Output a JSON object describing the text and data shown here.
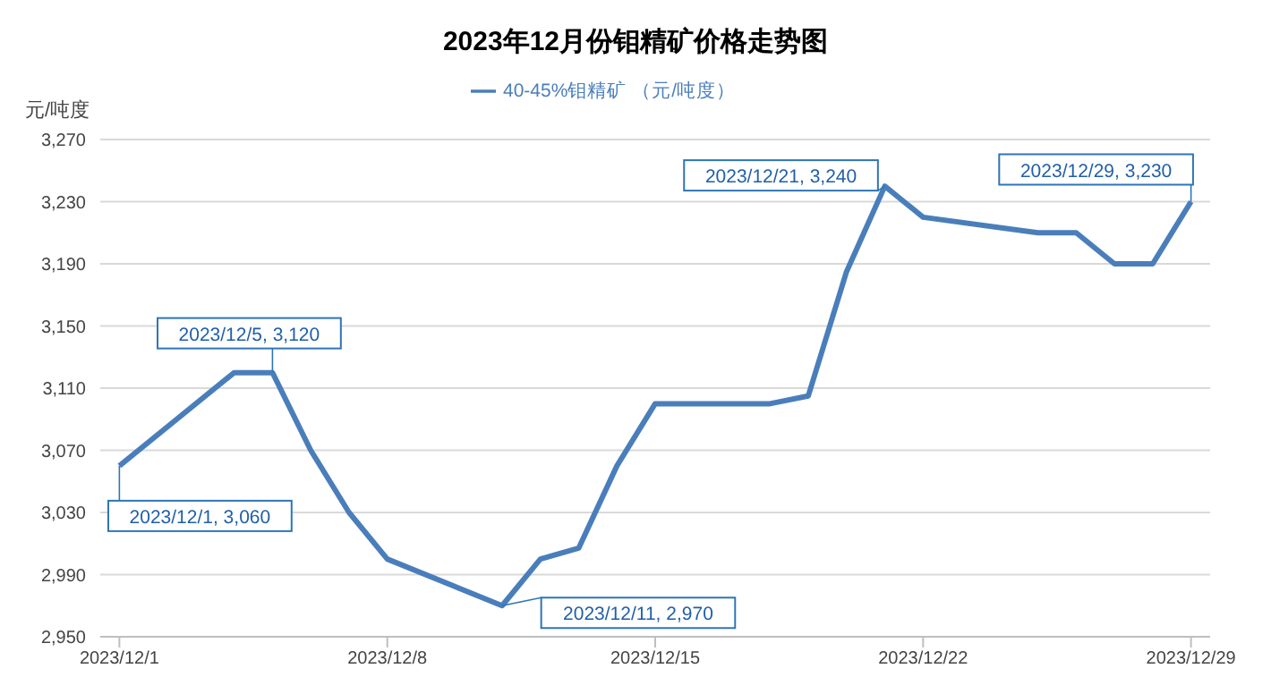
{
  "chart_data": {
    "type": "line",
    "title": "2023年12月份钼精矿价格走势图",
    "ylabel": "元/吨度",
    "x": [
      "2023-12-01",
      "2023-12-04",
      "2023-12-05",
      "2023-12-06",
      "2023-12-07",
      "2023-12-08",
      "2023-12-11",
      "2023-12-12",
      "2023-12-13",
      "2023-12-14",
      "2023-12-15",
      "2023-12-18",
      "2023-12-19",
      "2023-12-20",
      "2023-12-21",
      "2023-12-22",
      "2023-12-25",
      "2023-12-26",
      "2023-12-27",
      "2023-12-28",
      "2023-12-29"
    ],
    "series": [
      {
        "name": "40-45%钼精矿 （元/吨度）",
        "color": "#4a7ebb",
        "values": [
          3060,
          3120,
          3120,
          3070,
          3030,
          3000,
          2970,
          3000,
          3007,
          3060,
          3100,
          3100,
          3105,
          3185,
          3240,
          3220,
          3210,
          3210,
          3190,
          3190,
          3230
        ]
      }
    ],
    "xlim": [
      "2023-11-30T12:00",
      "2023-12-29T12:00"
    ],
    "xticks": [
      {
        "value": "2023-12-01",
        "label": "2023/12/1"
      },
      {
        "value": "2023-12-08",
        "label": "2023/12/8"
      },
      {
        "value": "2023-12-15",
        "label": "2023/12/15"
      },
      {
        "value": "2023-12-22",
        "label": "2023/12/22"
      },
      {
        "value": "2023-12-29",
        "label": "2023/12/29"
      }
    ],
    "ylim": [
      2950,
      3270
    ],
    "yticks": [
      {
        "value": 2950,
        "label": "2,950"
      },
      {
        "value": 2990,
        "label": "2,990"
      },
      {
        "value": 3030,
        "label": "3,030"
      },
      {
        "value": 3070,
        "label": "3,070"
      },
      {
        "value": 3110,
        "label": "3,110"
      },
      {
        "value": 3150,
        "label": "3,150"
      },
      {
        "value": 3190,
        "label": "3,190"
      },
      {
        "value": 3230,
        "label": "3,230"
      },
      {
        "value": 3270,
        "label": "3,270"
      }
    ],
    "annotations": [
      {
        "text": "2023/12/1, 3,060",
        "x": "2023-12-01",
        "y": 3060
      },
      {
        "text": "2023/12/5, 3,120",
        "x": "2023-12-05",
        "y": 3120
      },
      {
        "text": "2023/12/11, 2,970",
        "x": "2023-12-11",
        "y": 2970
      },
      {
        "text": "2023/12/21, 3,240",
        "x": "2023-12-21",
        "y": 3240
      },
      {
        "text": "2023/12/29, 3,230",
        "x": "2023-12-29",
        "y": 3230
      }
    ],
    "grid": "y",
    "legend": "top",
    "marker": "none",
    "line_style": "solid"
  }
}
